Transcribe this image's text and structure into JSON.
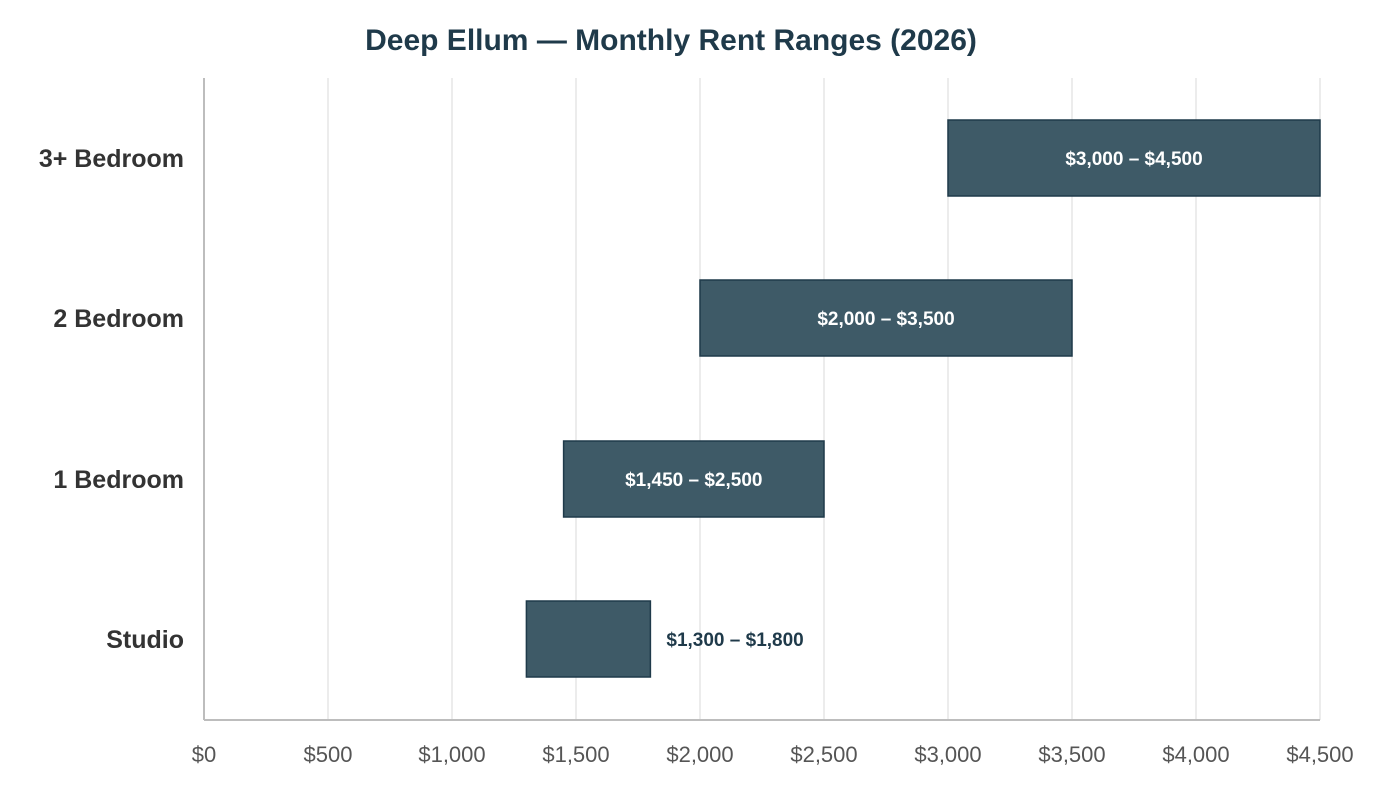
{
  "chart_data": {
    "type": "bar",
    "orientation": "horizontal",
    "subtype": "floating-range",
    "title": "Deep Ellum — Monthly Rent Ranges (2026)",
    "xlabel": "",
    "ylabel": "",
    "categories": [
      "3+ Bedroom",
      "2 Bedroom",
      "1 Bedroom",
      "Studio"
    ],
    "ranges": [
      {
        "category": "3+ Bedroom",
        "low": 3000,
        "high": 4500,
        "label": "$3,000 – $4,500",
        "label_position": "inside"
      },
      {
        "category": "2 Bedroom",
        "low": 2000,
        "high": 3500,
        "label": "$2,000 – $3,500",
        "label_position": "inside"
      },
      {
        "category": "1 Bedroom",
        "low": 1450,
        "high": 2500,
        "label": "$1,450 – $2,500",
        "label_position": "inside"
      },
      {
        "category": "Studio",
        "low": 1300,
        "high": 1800,
        "label": "$1,300 – $1,800",
        "label_position": "outside"
      }
    ],
    "xlim": [
      0,
      4500
    ],
    "xticks": [
      0,
      500,
      1000,
      1500,
      2000,
      2500,
      3000,
      3500,
      4000,
      4500
    ],
    "xtick_labels": [
      "$0",
      "$500",
      "$1,000",
      "$1,500",
      "$2,000",
      "$2,500",
      "$3,000",
      "$3,500",
      "$4,000",
      "$4,500"
    ],
    "grid": "vertical",
    "legend": "none",
    "colors": {
      "bar_fill": "#3e5a67",
      "bar_edge": "#1f3a4a",
      "title": "#1f3a4a"
    }
  }
}
